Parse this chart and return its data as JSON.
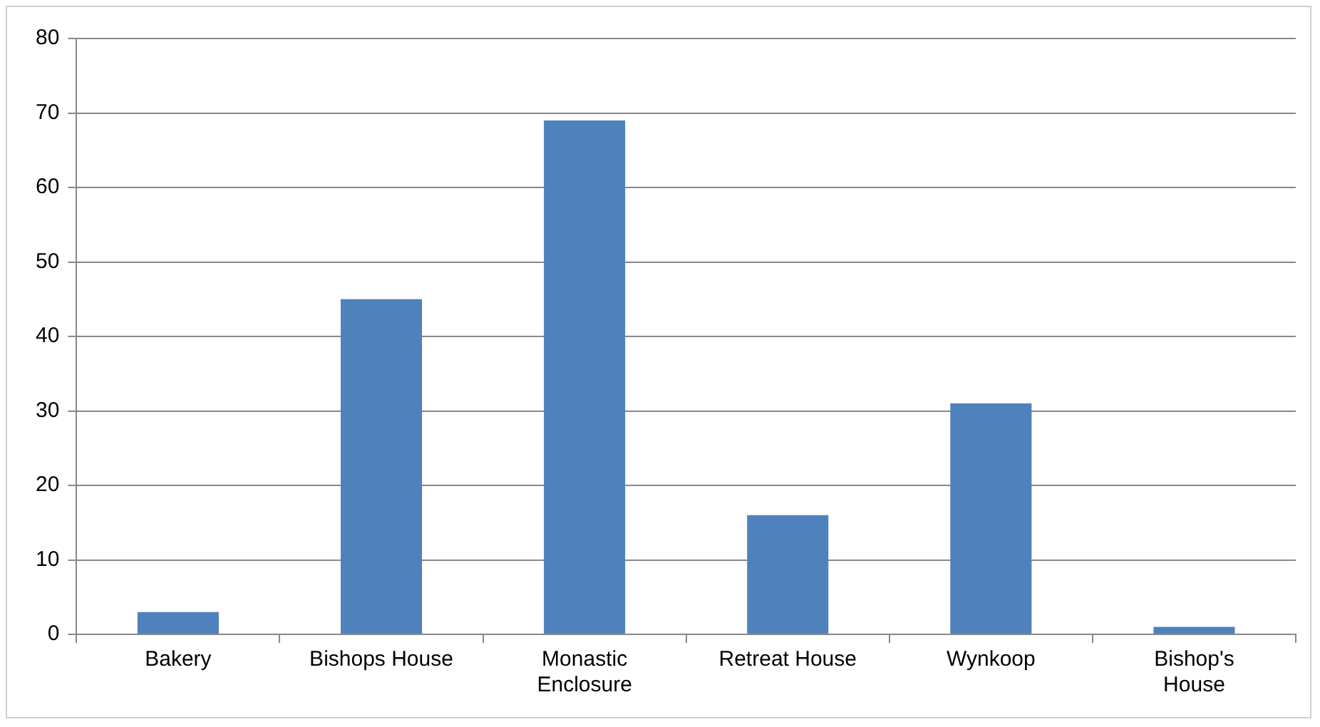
{
  "chart_data": {
    "type": "bar",
    "categories": [
      "Bakery",
      "Bishops House",
      "Monastic Enclosure",
      "Retreat House",
      "Wynkoop",
      "Bishop's House"
    ],
    "values": [
      3,
      45,
      69,
      16,
      31,
      1
    ],
    "color": "#4f81bd",
    "ylim": [
      0,
      80
    ],
    "yticks": [
      0,
      10,
      20,
      30,
      40,
      50,
      60,
      70,
      80
    ],
    "grid": "y",
    "legend": false
  }
}
